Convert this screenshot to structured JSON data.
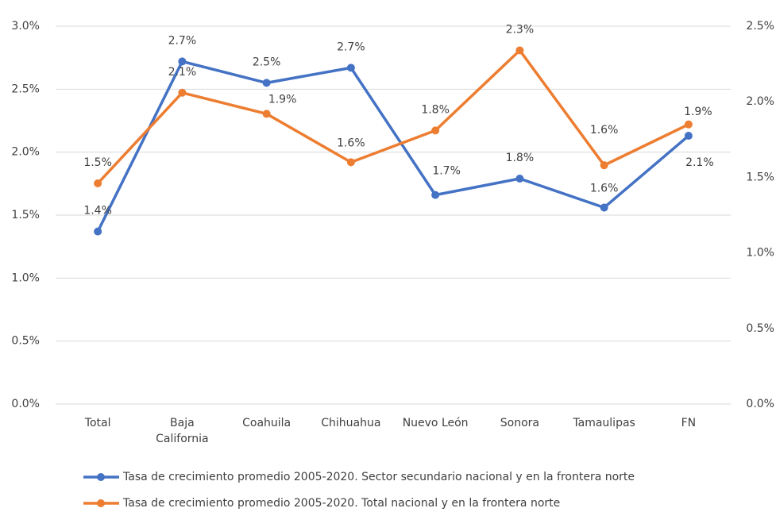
{
  "chart_data": {
    "type": "line",
    "categories": [
      "Total",
      "Baja California",
      "Coahuila",
      "Chihuahua",
      "Nuevo León",
      "Sonora",
      "Tamaulipas",
      "FN"
    ],
    "series": [
      {
        "name": "Tasa de crecimiento promedio 2005-2020. Sector secundario nacional y en la frontera norte",
        "color": "#4472c4",
        "values": [
          1.37,
          2.72,
          2.55,
          2.67,
          1.66,
          1.79,
          1.56,
          2.13
        ],
        "value_labels": [
          "1.4%",
          "2.7%",
          "2.5%",
          "2.7%",
          "1.7%",
          "1.8%",
          "1.6%",
          "2.1%"
        ]
      },
      {
        "name": "Tasa de crecimiento promedio 2005-2020. Total nacional y en la frontera norte",
        "color": "#ed7d31",
        "axis": "y2",
        "values": [
          1.46,
          2.06,
          1.92,
          1.6,
          1.81,
          2.34,
          1.58,
          1.85
        ],
        "value_labels": [
          "1.5%",
          "2.1%",
          "1.9%",
          "1.6%",
          "1.8%",
          "2.3%",
          "1.6%",
          "1.9%"
        ]
      }
    ],
    "ylim": [
      0,
      3
    ],
    "yticks": [
      {
        "value": 0,
        "label": "0.0%"
      },
      {
        "value": 0.5,
        "label": "0.5%"
      },
      {
        "value": 1,
        "label": "1.0%"
      },
      {
        "value": 1.5,
        "label": "1.5%"
      },
      {
        "value": 2,
        "label": "2.0%"
      },
      {
        "value": 2.5,
        "label": "2.5%"
      },
      {
        "value": 3,
        "label": "3.0%"
      }
    ],
    "y2lim": [
      0,
      2.5
    ],
    "y2ticks": [
      {
        "value": 0,
        "label": "0.0%"
      },
      {
        "value": 0.5,
        "label": "0.5%"
      },
      {
        "value": 1,
        "label": "1.0%"
      },
      {
        "value": 1.5,
        "label": "1.5%"
      },
      {
        "value": 2,
        "label": "2.0%"
      },
      {
        "value": 2.5,
        "label": "2.5%"
      }
    ],
    "grid": true,
    "legend": "bottom"
  }
}
